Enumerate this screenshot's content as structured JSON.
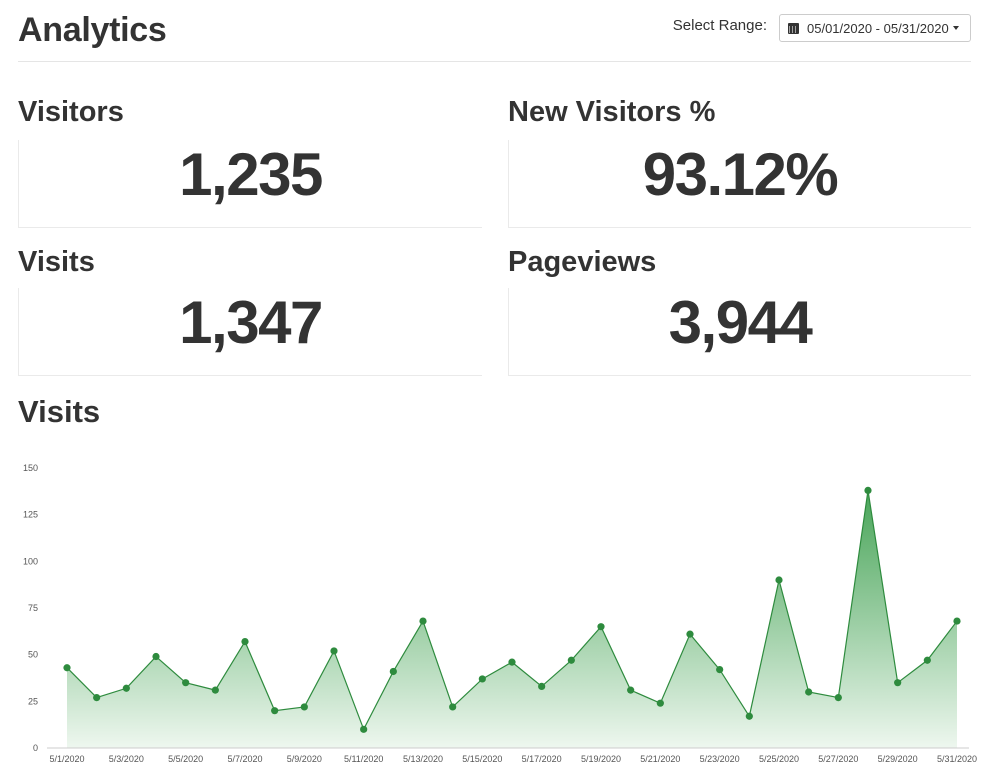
{
  "header": {
    "title": "Analytics",
    "range_label": "Select Range:",
    "range_value": "05/01/2020 - 05/31/2020"
  },
  "stats": {
    "visitors": {
      "label": "Visitors",
      "value": "1,235"
    },
    "new_visitors": {
      "label": "New Visitors %",
      "value": "93.12%"
    },
    "visits": {
      "label": "Visits",
      "value": "1,347"
    },
    "pageviews": {
      "label": "Pageviews",
      "value": "3,944"
    }
  },
  "chart_section": {
    "title": "Visits"
  },
  "colors": {
    "line": "#2e8b3e",
    "fill_top": "#3fa050",
    "fill_bottom": "#eef7ef"
  },
  "chart_data": {
    "type": "area",
    "x": [
      "5/1/2020",
      "5/2/2020",
      "5/3/2020",
      "5/4/2020",
      "5/5/2020",
      "5/6/2020",
      "5/7/2020",
      "5/8/2020",
      "5/9/2020",
      "5/10/2020",
      "5/11/2020",
      "5/12/2020",
      "5/13/2020",
      "5/14/2020",
      "5/15/2020",
      "5/16/2020",
      "5/17/2020",
      "5/18/2020",
      "5/19/2020",
      "5/20/2020",
      "5/21/2020",
      "5/22/2020",
      "5/23/2020",
      "5/24/2020",
      "5/25/2020",
      "5/26/2020",
      "5/27/2020",
      "5/28/2020",
      "5/29/2020",
      "5/30/2020",
      "5/31/2020"
    ],
    "x_tick_labels": [
      "5/1/2020",
      "5/3/2020",
      "5/5/2020",
      "5/7/2020",
      "5/9/2020",
      "5/11/2020",
      "5/13/2020",
      "5/15/2020",
      "5/17/2020",
      "5/19/2020",
      "5/21/2020",
      "5/23/2020",
      "5/25/2020",
      "5/27/2020",
      "5/29/2020",
      "5/31/2020"
    ],
    "series": [
      {
        "values": [
          43,
          27,
          32,
          49,
          35,
          31,
          57,
          20,
          22,
          52,
          10,
          41,
          68,
          22,
          37,
          46,
          33,
          47,
          65,
          31,
          24,
          61,
          42,
          17,
          90,
          30,
          27,
          138,
          35,
          47,
          68
        ]
      }
    ],
    "ylim": [
      0,
      150
    ],
    "y_ticks": [
      0,
      25,
      50,
      75,
      100,
      125,
      150
    ],
    "title": "",
    "xlabel": "",
    "ylabel": ""
  }
}
